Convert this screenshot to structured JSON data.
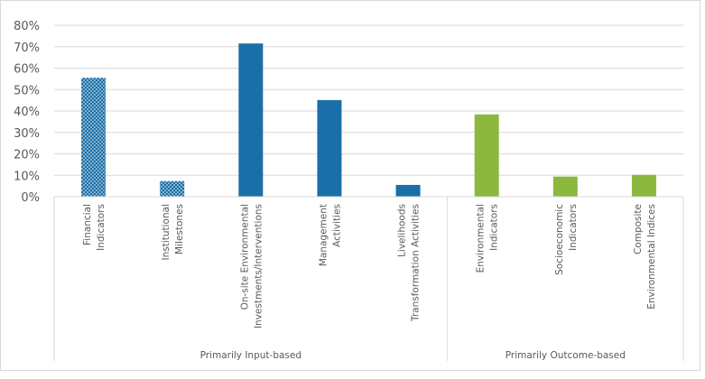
{
  "chart_data": {
    "type": "bar",
    "title": "",
    "xlabel": "",
    "ylabel": "",
    "ylim": [
      0,
      0.8
    ],
    "yticks": [
      "0%",
      "10%",
      "20%",
      "30%",
      "40%",
      "50%",
      "60%",
      "70%",
      "80%"
    ],
    "grid": true,
    "categories": [
      [
        "Financial",
        "Indicators"
      ],
      [
        "Institutional",
        "Milestones"
      ],
      [
        "On-site Environmental",
        "Investments/Interventions"
      ],
      [
        "Management",
        "Activities"
      ],
      [
        "Livelihoods",
        "Transformation Activities"
      ],
      [
        "Environmental",
        "Indicators"
      ],
      [
        "Socioeconomic",
        "Indicators"
      ],
      [
        "Composite",
        "Environmental Indices"
      ]
    ],
    "values": [
      0.555,
      0.073,
      0.715,
      0.451,
      0.055,
      0.384,
      0.094,
      0.102
    ],
    "fills": [
      "pattern",
      "pattern",
      "solid",
      "solid",
      "solid",
      "solid",
      "solid",
      "solid"
    ],
    "bar_colors": [
      "#1a6fa8",
      "#1a6fa8",
      "#1a6fa8",
      "#1a6fa8",
      "#1a6fa8",
      "#8cb840",
      "#8cb840",
      "#8cb840"
    ],
    "groups": [
      {
        "label": "Primarily Input-based",
        "count": 5
      },
      {
        "label": "Primarily Outcome-based",
        "count": 3
      }
    ]
  }
}
